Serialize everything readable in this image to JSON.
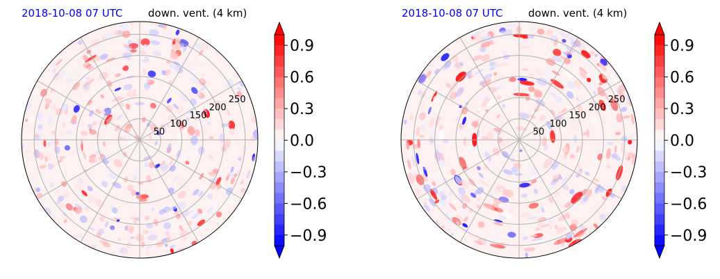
{
  "chart_data": [
    {
      "type": "heatmap",
      "projection": "polar",
      "title_date": "2018-10-08 07 UTC",
      "title_var": "down. vent. (4 km)",
      "title_date_color": "#0000ff",
      "radial_tick_labels": [
        "50",
        "100",
        "150",
        "200",
        "250"
      ],
      "radial_ticks": [
        50,
        100,
        150,
        200,
        250
      ],
      "r_max": 280,
      "colorbar": {
        "cmap": "bwr",
        "vmin": -1.0,
        "vmax": 1.0,
        "levels": 20,
        "extend": "both",
        "tick_values": [
          0.9,
          0.6,
          0.3,
          0.0,
          -0.3,
          -0.6,
          -0.9
        ],
        "tick_labels": [
          "0.9",
          "0.6",
          "0.3",
          "0.0",
          "−0.3",
          "−0.6",
          "−0.9"
        ]
      },
      "grid": true
    },
    {
      "type": "heatmap",
      "projection": "polar",
      "title_date": "2018-10-08 07 UTC",
      "title_var": "down. vent. (4 km)",
      "title_date_color": "#0000ff",
      "radial_tick_labels": [
        "50",
        "100",
        "150",
        "200",
        "250"
      ],
      "radial_ticks": [
        50,
        100,
        150,
        200,
        250
      ],
      "r_max": 280,
      "colorbar": {
        "cmap": "bwr",
        "vmin": -1.0,
        "vmax": 1.0,
        "levels": 20,
        "extend": "both",
        "tick_values": [
          0.9,
          0.6,
          0.3,
          0.0,
          -0.3,
          -0.6,
          -0.9
        ],
        "tick_labels": [
          "0.9",
          "0.6",
          "0.3",
          "0.0",
          "−0.3",
          "−0.6",
          "−0.9"
        ]
      },
      "grid": true
    }
  ]
}
